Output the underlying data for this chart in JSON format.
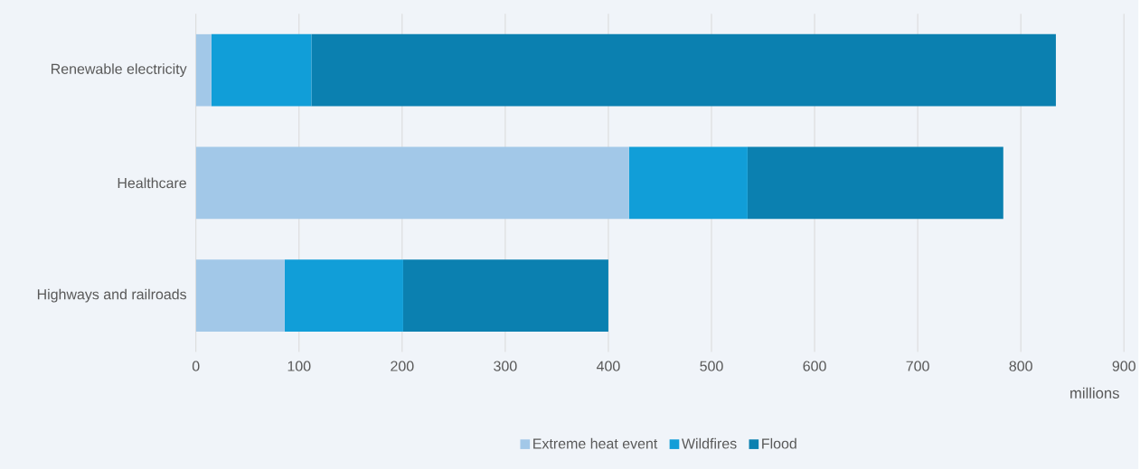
{
  "chart_data": {
    "type": "bar",
    "orientation": "horizontal",
    "stacked": true,
    "categories": [
      "Renewable electricity",
      "Healthcare",
      "Highways and railroads"
    ],
    "series": [
      {
        "name": "Extreme heat event",
        "color": "#a2c8e8",
        "values": [
          15,
          420,
          86
        ]
      },
      {
        "name": "Wildfires",
        "color": "#119ed8",
        "values": [
          97,
          115,
          115
        ]
      },
      {
        "name": "Flood",
        "color": "#0b80b0",
        "values": [
          722,
          248,
          199
        ]
      }
    ],
    "xlim": [
      0,
      900
    ],
    "xticks": [
      0,
      100,
      200,
      300,
      400,
      500,
      600,
      700,
      800,
      900
    ],
    "xlabel": "millions",
    "grid": "x",
    "legend": "bottom"
  }
}
